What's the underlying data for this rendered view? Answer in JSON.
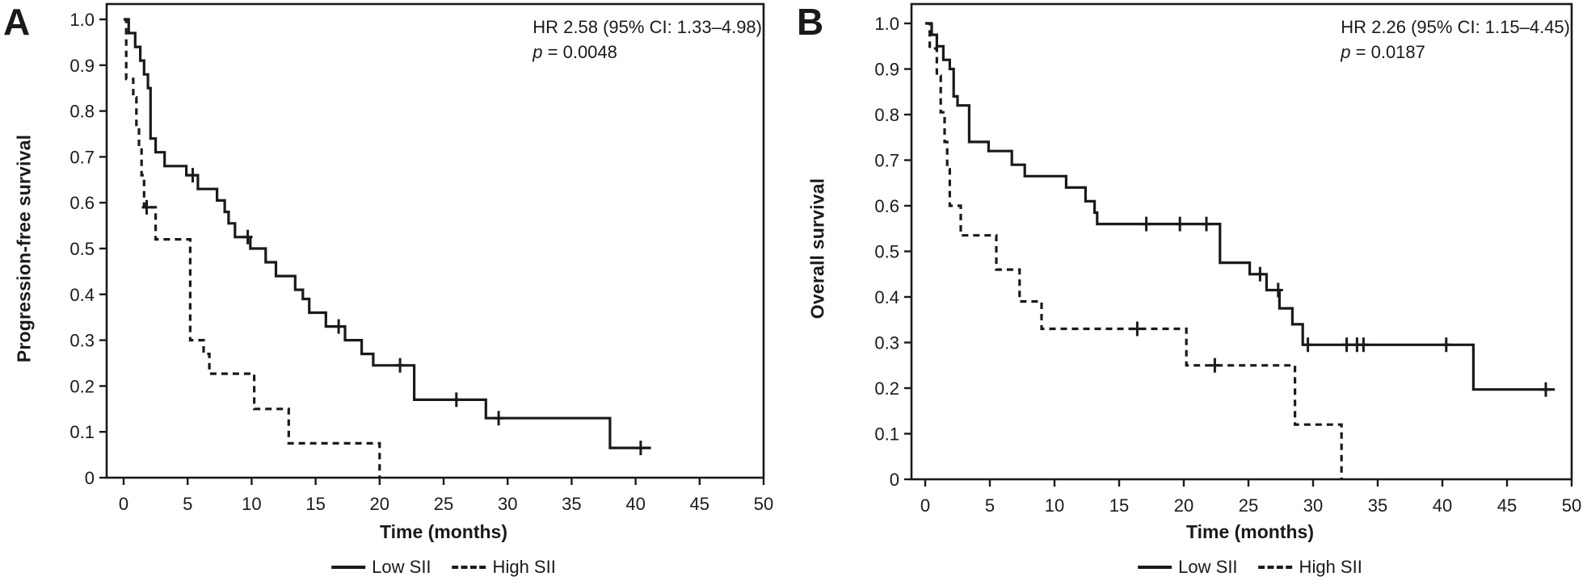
{
  "page": {
    "background": "#ffffff",
    "ink": "#1a1a1a"
  },
  "chart_data": [
    {
      "panel": "A",
      "type": "line",
      "subtype": "kaplan-meier-step",
      "ylabel": "Progression-free survival",
      "xlabel": "Time (months)",
      "annotation": {
        "hr": "HR 2.58 (95% CI: 1.33–4.98)",
        "p_symbol": "p",
        "p_value": " = 0.0048"
      },
      "xlim": [
        0,
        50
      ],
      "ylim": [
        0,
        1.0
      ],
      "grid": false,
      "legend_position": "bottom-center",
      "x_ticks": [
        0,
        5,
        10,
        15,
        20,
        25,
        30,
        35,
        40,
        45,
        50
      ],
      "y_ticks": [
        {
          "value": 1.0,
          "label": "1.0"
        },
        {
          "value": 0.9,
          "label": "0.9"
        },
        {
          "value": 0.8,
          "label": "0.8"
        },
        {
          "value": 0.7,
          "label": "0.7"
        },
        {
          "value": 0.6,
          "label": "0.6"
        },
        {
          "value": 0.5,
          "label": "0.5"
        },
        {
          "value": 0.4,
          "label": "0.4"
        },
        {
          "value": 0.3,
          "label": "0.3"
        },
        {
          "value": 0.2,
          "label": "0.2"
        },
        {
          "value": 0.1,
          "label": "0.1"
        },
        {
          "value": 0.0,
          "label": "0"
        }
      ],
      "series": [
        {
          "name": "Low SII",
          "style": "solid",
          "steps": [
            [
              0,
              1.0
            ],
            [
              0.4,
              0.97
            ],
            [
              0.9,
              0.94
            ],
            [
              1.3,
              0.91
            ],
            [
              1.6,
              0.88
            ],
            [
              1.9,
              0.85
            ],
            [
              2.1,
              0.74
            ],
            [
              2.5,
              0.71
            ],
            [
              3.2,
              0.68
            ],
            [
              4.9,
              0.66
            ],
            [
              5.8,
              0.63
            ],
            [
              7.3,
              0.605
            ],
            [
              7.9,
              0.58
            ],
            [
              8.2,
              0.555
            ],
            [
              8.7,
              0.525
            ],
            [
              9.9,
              0.5
            ],
            [
              11.1,
              0.47
            ],
            [
              11.9,
              0.44
            ],
            [
              13.4,
              0.41
            ],
            [
              14.0,
              0.39
            ],
            [
              14.5,
              0.36
            ],
            [
              15.8,
              0.33
            ],
            [
              17.3,
              0.3
            ],
            [
              18.6,
              0.27
            ],
            [
              19.5,
              0.245
            ],
            [
              22.7,
              0.17
            ],
            [
              28.3,
              0.13
            ],
            [
              38.0,
              0.065
            ]
          ],
          "censors": [
            [
              5.4,
              0.66
            ],
            [
              9.7,
              0.525
            ],
            [
              16.8,
              0.33
            ],
            [
              21.6,
              0.245
            ],
            [
              26.0,
              0.17
            ],
            [
              29.3,
              0.13
            ],
            [
              40.4,
              0.065
            ]
          ],
          "end_t": 41.2
        },
        {
          "name": "High SII",
          "style": "dashed",
          "steps": [
            [
              0,
              1.0
            ],
            [
              0.2,
              0.87
            ],
            [
              0.75,
              0.83
            ],
            [
              1.0,
              0.77
            ],
            [
              1.2,
              0.72
            ],
            [
              1.4,
              0.66
            ],
            [
              1.6,
              0.59
            ],
            [
              2.5,
              0.52
            ],
            [
              5.2,
              0.3
            ],
            [
              6.25,
              0.27
            ],
            [
              6.7,
              0.227
            ],
            [
              10.2,
              0.15
            ],
            [
              12.9,
              0.075
            ],
            [
              20.0,
              0.0
            ]
          ],
          "censors": [
            [
              1.8,
              0.59
            ]
          ],
          "end_t": 20.0
        }
      ]
    },
    {
      "panel": "B",
      "type": "line",
      "subtype": "kaplan-meier-step",
      "ylabel": "Overall survival",
      "xlabel": "Time (months)",
      "annotation": {
        "hr": "HR 2.26 (95% CI: 1.15–4.45)",
        "p_symbol": "p",
        "p_value": " = 0.0187"
      },
      "xlim": [
        0,
        50
      ],
      "ylim": [
        0,
        1.0
      ],
      "grid": false,
      "legend_position": "bottom-center",
      "x_ticks": [
        0,
        5,
        10,
        15,
        20,
        25,
        30,
        35,
        40,
        45,
        50
      ],
      "y_ticks": [
        {
          "value": 1.0,
          "label": "1.0"
        },
        {
          "value": 0.9,
          "label": "0.9"
        },
        {
          "value": 0.8,
          "label": "0.8"
        },
        {
          "value": 0.7,
          "label": "0.7"
        },
        {
          "value": 0.6,
          "label": "0.6"
        },
        {
          "value": 0.5,
          "label": "0.5"
        },
        {
          "value": 0.4,
          "label": "0.4"
        },
        {
          "value": 0.3,
          "label": "0.3"
        },
        {
          "value": 0.2,
          "label": "0.2"
        },
        {
          "value": 0.1,
          "label": "0.1"
        },
        {
          "value": 0.0,
          "label": "0"
        }
      ],
      "series": [
        {
          "name": "Low SII",
          "style": "solid",
          "steps": [
            [
              0,
              1.0
            ],
            [
              0.5,
              0.975
            ],
            [
              0.9,
              0.95
            ],
            [
              1.4,
              0.92
            ],
            [
              1.9,
              0.9
            ],
            [
              2.2,
              0.84
            ],
            [
              2.5,
              0.82
            ],
            [
              3.4,
              0.74
            ],
            [
              4.9,
              0.72
            ],
            [
              6.7,
              0.69
            ],
            [
              7.7,
              0.665
            ],
            [
              10.9,
              0.64
            ],
            [
              12.4,
              0.61
            ],
            [
              13.1,
              0.585
            ],
            [
              13.3,
              0.56
            ],
            [
              22.8,
              0.475
            ],
            [
              25.1,
              0.45
            ],
            [
              26.4,
              0.415
            ],
            [
              27.4,
              0.375
            ],
            [
              28.4,
              0.34
            ],
            [
              29.2,
              0.295
            ],
            [
              42.4,
              0.197
            ]
          ],
          "censors": [
            [
              17.1,
              0.56
            ],
            [
              19.7,
              0.56
            ],
            [
              21.75,
              0.56
            ],
            [
              25.9,
              0.45
            ],
            [
              27.3,
              0.415
            ],
            [
              29.6,
              0.295
            ],
            [
              32.6,
              0.295
            ],
            [
              33.4,
              0.295
            ],
            [
              33.9,
              0.295
            ],
            [
              40.3,
              0.295
            ],
            [
              48.0,
              0.197
            ]
          ],
          "end_t": 48.7
        },
        {
          "name": "High SII",
          "style": "dashed",
          "steps": [
            [
              0,
              1.0
            ],
            [
              0.35,
              0.945
            ],
            [
              0.9,
              0.885
            ],
            [
              1.2,
              0.805
            ],
            [
              1.5,
              0.74
            ],
            [
              1.7,
              0.68
            ],
            [
              1.9,
              0.6
            ],
            [
              2.75,
              0.535
            ],
            [
              5.5,
              0.46
            ],
            [
              7.3,
              0.39
            ],
            [
              9.0,
              0.33
            ],
            [
              20.2,
              0.25
            ],
            [
              28.6,
              0.12
            ],
            [
              32.2,
              0.0
            ]
          ],
          "censors": [
            [
              16.4,
              0.33
            ],
            [
              22.4,
              0.25
            ]
          ],
          "end_t": 32.2
        }
      ]
    }
  ]
}
